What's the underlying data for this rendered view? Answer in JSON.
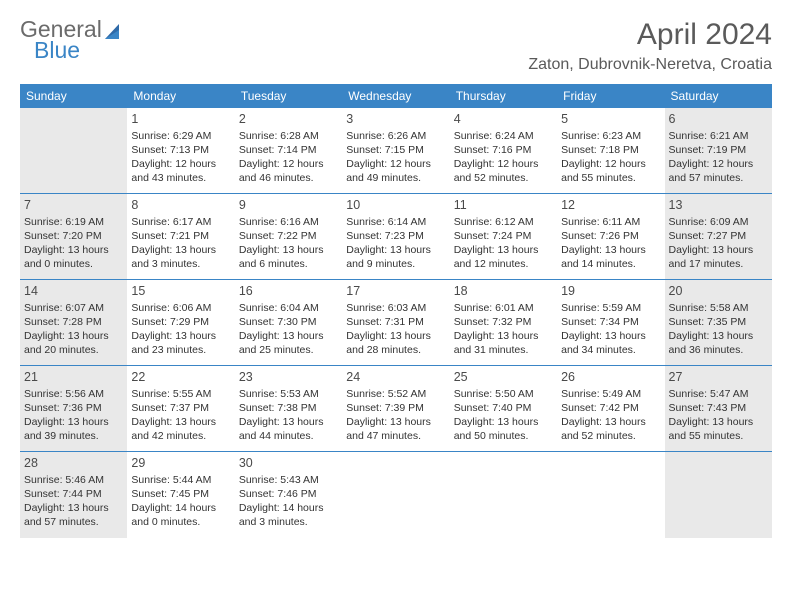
{
  "brand": {
    "word1": "General",
    "word2": "Blue",
    "word1_color": "#6b6b6b",
    "word2_color": "#3a85c6"
  },
  "title": "April 2024",
  "location": "Zaton, Dubrovnik-Neretva, Croatia",
  "colors": {
    "header_bg": "#3a85c6",
    "row_border": "#3a85c6",
    "shaded_bg": "#e9e9e9",
    "text": "#333333"
  },
  "weekdays": [
    "Sunday",
    "Monday",
    "Tuesday",
    "Wednesday",
    "Thursday",
    "Friday",
    "Saturday"
  ],
  "weeks": [
    [
      {
        "day": "",
        "sunrise": "",
        "sunset": "",
        "daylight": "",
        "shaded": true
      },
      {
        "day": "1",
        "sunrise": "Sunrise: 6:29 AM",
        "sunset": "Sunset: 7:13 PM",
        "daylight": "Daylight: 12 hours and 43 minutes.",
        "shaded": false
      },
      {
        "day": "2",
        "sunrise": "Sunrise: 6:28 AM",
        "sunset": "Sunset: 7:14 PM",
        "daylight": "Daylight: 12 hours and 46 minutes.",
        "shaded": false
      },
      {
        "day": "3",
        "sunrise": "Sunrise: 6:26 AM",
        "sunset": "Sunset: 7:15 PM",
        "daylight": "Daylight: 12 hours and 49 minutes.",
        "shaded": false
      },
      {
        "day": "4",
        "sunrise": "Sunrise: 6:24 AM",
        "sunset": "Sunset: 7:16 PM",
        "daylight": "Daylight: 12 hours and 52 minutes.",
        "shaded": false
      },
      {
        "day": "5",
        "sunrise": "Sunrise: 6:23 AM",
        "sunset": "Sunset: 7:18 PM",
        "daylight": "Daylight: 12 hours and 55 minutes.",
        "shaded": false
      },
      {
        "day": "6",
        "sunrise": "Sunrise: 6:21 AM",
        "sunset": "Sunset: 7:19 PM",
        "daylight": "Daylight: 12 hours and 57 minutes.",
        "shaded": true
      }
    ],
    [
      {
        "day": "7",
        "sunrise": "Sunrise: 6:19 AM",
        "sunset": "Sunset: 7:20 PM",
        "daylight": "Daylight: 13 hours and 0 minutes.",
        "shaded": true
      },
      {
        "day": "8",
        "sunrise": "Sunrise: 6:17 AM",
        "sunset": "Sunset: 7:21 PM",
        "daylight": "Daylight: 13 hours and 3 minutes.",
        "shaded": false
      },
      {
        "day": "9",
        "sunrise": "Sunrise: 6:16 AM",
        "sunset": "Sunset: 7:22 PM",
        "daylight": "Daylight: 13 hours and 6 minutes.",
        "shaded": false
      },
      {
        "day": "10",
        "sunrise": "Sunrise: 6:14 AM",
        "sunset": "Sunset: 7:23 PM",
        "daylight": "Daylight: 13 hours and 9 minutes.",
        "shaded": false
      },
      {
        "day": "11",
        "sunrise": "Sunrise: 6:12 AM",
        "sunset": "Sunset: 7:24 PM",
        "daylight": "Daylight: 13 hours and 12 minutes.",
        "shaded": false
      },
      {
        "day": "12",
        "sunrise": "Sunrise: 6:11 AM",
        "sunset": "Sunset: 7:26 PM",
        "daylight": "Daylight: 13 hours and 14 minutes.",
        "shaded": false
      },
      {
        "day": "13",
        "sunrise": "Sunrise: 6:09 AM",
        "sunset": "Sunset: 7:27 PM",
        "daylight": "Daylight: 13 hours and 17 minutes.",
        "shaded": true
      }
    ],
    [
      {
        "day": "14",
        "sunrise": "Sunrise: 6:07 AM",
        "sunset": "Sunset: 7:28 PM",
        "daylight": "Daylight: 13 hours and 20 minutes.",
        "shaded": true
      },
      {
        "day": "15",
        "sunrise": "Sunrise: 6:06 AM",
        "sunset": "Sunset: 7:29 PM",
        "daylight": "Daylight: 13 hours and 23 minutes.",
        "shaded": false
      },
      {
        "day": "16",
        "sunrise": "Sunrise: 6:04 AM",
        "sunset": "Sunset: 7:30 PM",
        "daylight": "Daylight: 13 hours and 25 minutes.",
        "shaded": false
      },
      {
        "day": "17",
        "sunrise": "Sunrise: 6:03 AM",
        "sunset": "Sunset: 7:31 PM",
        "daylight": "Daylight: 13 hours and 28 minutes.",
        "shaded": false
      },
      {
        "day": "18",
        "sunrise": "Sunrise: 6:01 AM",
        "sunset": "Sunset: 7:32 PM",
        "daylight": "Daylight: 13 hours and 31 minutes.",
        "shaded": false
      },
      {
        "day": "19",
        "sunrise": "Sunrise: 5:59 AM",
        "sunset": "Sunset: 7:34 PM",
        "daylight": "Daylight: 13 hours and 34 minutes.",
        "shaded": false
      },
      {
        "day": "20",
        "sunrise": "Sunrise: 5:58 AM",
        "sunset": "Sunset: 7:35 PM",
        "daylight": "Daylight: 13 hours and 36 minutes.",
        "shaded": true
      }
    ],
    [
      {
        "day": "21",
        "sunrise": "Sunrise: 5:56 AM",
        "sunset": "Sunset: 7:36 PM",
        "daylight": "Daylight: 13 hours and 39 minutes.",
        "shaded": true
      },
      {
        "day": "22",
        "sunrise": "Sunrise: 5:55 AM",
        "sunset": "Sunset: 7:37 PM",
        "daylight": "Daylight: 13 hours and 42 minutes.",
        "shaded": false
      },
      {
        "day": "23",
        "sunrise": "Sunrise: 5:53 AM",
        "sunset": "Sunset: 7:38 PM",
        "daylight": "Daylight: 13 hours and 44 minutes.",
        "shaded": false
      },
      {
        "day": "24",
        "sunrise": "Sunrise: 5:52 AM",
        "sunset": "Sunset: 7:39 PM",
        "daylight": "Daylight: 13 hours and 47 minutes.",
        "shaded": false
      },
      {
        "day": "25",
        "sunrise": "Sunrise: 5:50 AM",
        "sunset": "Sunset: 7:40 PM",
        "daylight": "Daylight: 13 hours and 50 minutes.",
        "shaded": false
      },
      {
        "day": "26",
        "sunrise": "Sunrise: 5:49 AM",
        "sunset": "Sunset: 7:42 PM",
        "daylight": "Daylight: 13 hours and 52 minutes.",
        "shaded": false
      },
      {
        "day": "27",
        "sunrise": "Sunrise: 5:47 AM",
        "sunset": "Sunset: 7:43 PM",
        "daylight": "Daylight: 13 hours and 55 minutes.",
        "shaded": true
      }
    ],
    [
      {
        "day": "28",
        "sunrise": "Sunrise: 5:46 AM",
        "sunset": "Sunset: 7:44 PM",
        "daylight": "Daylight: 13 hours and 57 minutes.",
        "shaded": true
      },
      {
        "day": "29",
        "sunrise": "Sunrise: 5:44 AM",
        "sunset": "Sunset: 7:45 PM",
        "daylight": "Daylight: 14 hours and 0 minutes.",
        "shaded": false
      },
      {
        "day": "30",
        "sunrise": "Sunrise: 5:43 AM",
        "sunset": "Sunset: 7:46 PM",
        "daylight": "Daylight: 14 hours and 3 minutes.",
        "shaded": false
      },
      {
        "day": "",
        "sunrise": "",
        "sunset": "",
        "daylight": "",
        "shaded": false
      },
      {
        "day": "",
        "sunrise": "",
        "sunset": "",
        "daylight": "",
        "shaded": false
      },
      {
        "day": "",
        "sunrise": "",
        "sunset": "",
        "daylight": "",
        "shaded": false
      },
      {
        "day": "",
        "sunrise": "",
        "sunset": "",
        "daylight": "",
        "shaded": true
      }
    ]
  ]
}
